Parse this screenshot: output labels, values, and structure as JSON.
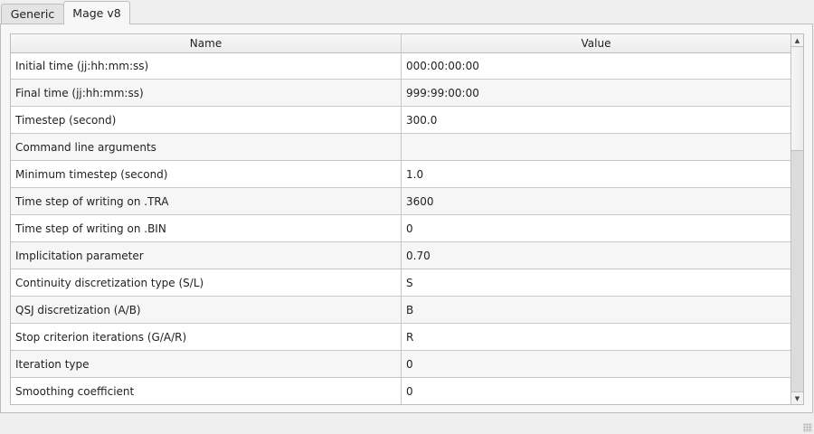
{
  "tabs": [
    {
      "label": "Generic",
      "active": false
    },
    {
      "label": "Mage v8",
      "active": true
    }
  ],
  "table": {
    "columns": [
      "Name",
      "Value"
    ],
    "rows": [
      [
        "Initial time (jj:hh:mm:ss)",
        "000:00:00:00"
      ],
      [
        "Final time (jj:hh:mm:ss)",
        "999:99:00:00"
      ],
      [
        "Timestep (second)",
        "300.0"
      ],
      [
        "Command line arguments",
        ""
      ],
      [
        "Minimum timestep (second)",
        "1.0"
      ],
      [
        "Time step of writing on .TRA",
        "3600"
      ],
      [
        "Time step of writing on .BIN",
        "0"
      ],
      [
        "Implicitation parameter",
        "0.70"
      ],
      [
        "Continuity discretization type (S/L)",
        "S"
      ],
      [
        "QSJ discretization (A/B)",
        "B"
      ],
      [
        "Stop criterion iterations (G/A/R)",
        "R"
      ],
      [
        "Iteration type",
        "0"
      ],
      [
        "Smoothing coefficient",
        "0"
      ]
    ]
  },
  "scrollbar": {
    "position_fraction": 0.0,
    "visible_fraction": 0.3
  }
}
